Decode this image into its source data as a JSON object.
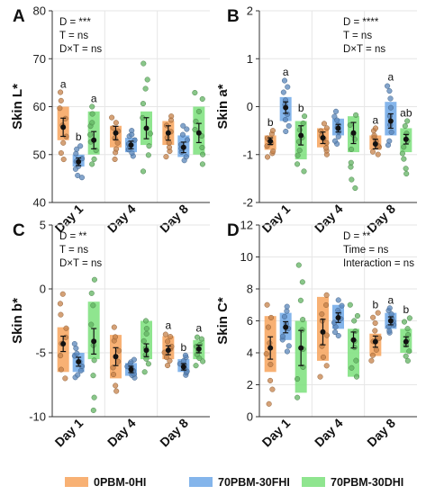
{
  "legend": [
    {
      "label": "0PBM-0HI",
      "color": "#F7A35C"
    },
    {
      "label": "70PBM-30FHI",
      "color": "#6FA8E8"
    },
    {
      "label": "70PBM-30DHI",
      "color": "#7BE07B"
    }
  ],
  "chart_data": [
    {
      "type": "box",
      "panel": "A",
      "ylabel": "Skin L*",
      "ylim": [
        40,
        80
      ],
      "yticks": [
        40,
        50,
        60,
        70,
        80
      ],
      "categories": [
        "Day 1",
        "Day 4",
        "Day 8"
      ],
      "annotations": [
        "D = ***",
        "T = ns",
        "D×T = ns"
      ],
      "annotation_position": "top-left",
      "letters": [
        [
          "a",
          "b",
          "a"
        ],
        [
          "",
          "",
          ""
        ],
        [
          "",
          "",
          ""
        ]
      ],
      "series": [
        {
          "name": "0PBM-0HI",
          "boxes": [
            {
              "q1": 53,
              "q3": 60,
              "mean": 55.7,
              "sem": 1.9,
              "min": 49,
              "max": 63
            },
            {
              "q1": 51.5,
              "q3": 56,
              "mean": 54.5,
              "sem": 1.4,
              "min": 49,
              "max": 58
            },
            {
              "q1": 52,
              "q3": 57,
              "mean": 54.5,
              "sem": 1.5,
              "min": 49.5,
              "max": 58
            }
          ]
        },
        {
          "name": "70PBM-30FHI",
          "boxes": [
            {
              "q1": 47.5,
              "q3": 50,
              "mean": 48.5,
              "sem": 0.8,
              "min": 45,
              "max": 52
            },
            {
              "q1": 50.5,
              "q3": 53.5,
              "mean": 52,
              "sem": 0.8,
              "min": 49.5,
              "max": 55
            },
            {
              "q1": 49.5,
              "q3": 54,
              "mean": 51.5,
              "sem": 1.1,
              "min": 48.5,
              "max": 56
            }
          ]
        },
        {
          "name": "70PBM-30DHI",
          "boxes": [
            {
              "q1": 50,
              "q3": 59,
              "mean": 53,
              "sem": 1.8,
              "min": 48,
              "max": 60
            },
            {
              "q1": 52,
              "q3": 59,
              "mean": 55.5,
              "sem": 2.2,
              "min": 46.5,
              "max": 69
            },
            {
              "q1": 50,
              "q3": 60,
              "mean": 54.5,
              "sem": 2.0,
              "min": 48,
              "max": 63
            }
          ]
        }
      ]
    },
    {
      "type": "box",
      "panel": "B",
      "ylabel": "Skin a*",
      "ylim": [
        -2,
        2
      ],
      "yticks": [
        -2,
        -1,
        0,
        1,
        2
      ],
      "categories": [
        "Day 1",
        "Day 4",
        "Day 8"
      ],
      "annotations": [
        "D = ****",
        "T = ns",
        "D×T = ns"
      ],
      "annotation_position": "top-right",
      "letters": [
        [
          "b",
          "a",
          "b"
        ],
        [
          "",
          "",
          ""
        ],
        [
          "a",
          "a",
          "ab"
        ]
      ],
      "series": [
        {
          "name": "0PBM-0HI",
          "boxes": [
            {
              "q1": -0.9,
              "q3": -0.6,
              "mean": -0.72,
              "sem": 0.07,
              "min": -1.05,
              "max": -0.5
            },
            {
              "q1": -0.85,
              "q3": -0.45,
              "mean": -0.65,
              "sem": 0.12,
              "min": -1.0,
              "max": -0.35
            },
            {
              "q1": -0.9,
              "q3": -0.6,
              "mean": -0.78,
              "sem": 0.1,
              "min": -1.0,
              "max": -0.45
            }
          ]
        },
        {
          "name": "70PBM-30FHI",
          "boxes": [
            {
              "q1": -0.3,
              "q3": 0.2,
              "mean": -0.02,
              "sem": 0.12,
              "min": -0.55,
              "max": 0.55
            },
            {
              "q1": -0.6,
              "q3": -0.25,
              "mean": -0.45,
              "sem": 0.08,
              "min": -0.8,
              "max": -0.1
            },
            {
              "q1": -0.6,
              "q3": 0.1,
              "mean": -0.3,
              "sem": 0.15,
              "min": -0.85,
              "max": 0.45
            }
          ]
        },
        {
          "name": "70PBM-30DHI",
          "boxes": [
            {
              "q1": -1.1,
              "q3": -0.3,
              "mean": -0.6,
              "sem": 0.2,
              "min": -1.35,
              "max": -0.2
            },
            {
              "q1": -0.95,
              "q3": -0.2,
              "mean": -0.55,
              "sem": 0.22,
              "min": -1.7,
              "max": -0.15
            },
            {
              "q1": -0.95,
              "q3": -0.45,
              "mean": -0.68,
              "sem": 0.1,
              "min": -1.4,
              "max": -0.3
            }
          ]
        }
      ]
    },
    {
      "type": "box",
      "panel": "C",
      "ylabel": "Skin b*",
      "ylim": [
        -10,
        5
      ],
      "yticks": [
        -10,
        -5,
        0,
        5
      ],
      "categories": [
        "Day 1",
        "Day 4",
        "Day 8"
      ],
      "annotations": [
        "D = **",
        "T = ns",
        "D×T = ns"
      ],
      "annotation_position": "top-left",
      "letters": [
        [
          "",
          "",
          ""
        ],
        [
          "",
          "",
          ""
        ],
        [
          "a",
          "b",
          "a"
        ]
      ],
      "series": [
        {
          "name": "0PBM-0HI",
          "boxes": [
            {
              "q1": -6.5,
              "q3": -3.0,
              "mean": -4.3,
              "sem": 0.6,
              "min": -7.0,
              "max": -0.3
            },
            {
              "q1": -7.0,
              "q3": -3.6,
              "mean": -5.3,
              "sem": 0.7,
              "min": -8.0,
              "max": -3.0
            },
            {
              "q1": -5.5,
              "q3": -3.7,
              "mean": -4.8,
              "sem": 0.35,
              "min": -6.0,
              "max": -3.5
            }
          ]
        },
        {
          "name": "70PBM-30FHI",
          "boxes": [
            {
              "q1": -6.5,
              "q3": -5.0,
              "mean": -5.7,
              "sem": 0.35,
              "min": -7.0,
              "max": -4.3
            },
            {
              "q1": -6.8,
              "q3": -5.8,
              "mean": -6.3,
              "sem": 0.25,
              "min": -7.0,
              "max": -5.5
            },
            {
              "q1": -6.5,
              "q3": -5.5,
              "mean": -6.1,
              "sem": 0.25,
              "min": -6.8,
              "max": -5.2
            }
          ]
        },
        {
          "name": "70PBM-30DHI",
          "boxes": [
            {
              "q1": -5.5,
              "q3": -1.0,
              "mean": -4.1,
              "sem": 1.0,
              "min": -9.5,
              "max": 1.0
            },
            {
              "q1": -5.5,
              "q3": -2.5,
              "mean": -4.8,
              "sem": 0.5,
              "min": -6.5,
              "max": -2.5
            },
            {
              "q1": -5.5,
              "q3": -4.0,
              "mean": -4.7,
              "sem": 0.3,
              "min": -6.0,
              "max": -3.7
            }
          ]
        }
      ]
    },
    {
      "type": "box",
      "panel": "D",
      "ylabel": "Skin C*",
      "ylim": [
        0,
        12
      ],
      "yticks": [
        0,
        2,
        4,
        6,
        8,
        10,
        12
      ],
      "categories": [
        "Day 1",
        "Day 4",
        "Day 8"
      ],
      "annotations": [
        "D = **",
        "Time = ns",
        "Interaction = ns"
      ],
      "annotation_position": "top-right",
      "letters": [
        [
          "",
          "",
          ""
        ],
        [
          "",
          "",
          ""
        ],
        [
          "b",
          "a",
          "b"
        ]
      ],
      "series": [
        {
          "name": "0PBM-0HI",
          "boxes": [
            {
              "q1": 2.8,
              "q3": 6.3,
              "mean": 4.3,
              "sem": 0.7,
              "min": 0.8,
              "max": 7.0
            },
            {
              "q1": 3.5,
              "q3": 7.5,
              "mean": 5.3,
              "sem": 0.8,
              "min": 2.5,
              "max": 7.8
            },
            {
              "q1": 3.8,
              "q3": 5.2,
              "mean": 4.7,
              "sem": 0.35,
              "min": 3.5,
              "max": 6.5
            }
          ]
        },
        {
          "name": "70PBM-30FHI",
          "boxes": [
            {
              "q1": 4.8,
              "q3": 6.5,
              "mean": 5.6,
              "sem": 0.35,
              "min": 4.0,
              "max": 7.0
            },
            {
              "q1": 5.5,
              "q3": 7.0,
              "mean": 6.2,
              "sem": 0.3,
              "min": 5.0,
              "max": 7.3
            },
            {
              "q1": 5.5,
              "q3": 6.5,
              "mean": 6.0,
              "sem": 0.25,
              "min": 5.2,
              "max": 6.8
            }
          ]
        },
        {
          "name": "70PBM-30DHI",
          "boxes": [
            {
              "q1": 1.5,
              "q3": 6.0,
              "mean": 4.3,
              "sem": 1.1,
              "min": 1.2,
              "max": 9.5
            },
            {
              "q1": 2.5,
              "q3": 5.5,
              "mean": 4.8,
              "sem": 0.5,
              "min": 2.5,
              "max": 7.0
            },
            {
              "q1": 4.0,
              "q3": 5.5,
              "mean": 4.7,
              "sem": 0.3,
              "min": 3.5,
              "max": 6.2
            }
          ]
        }
      ]
    }
  ]
}
